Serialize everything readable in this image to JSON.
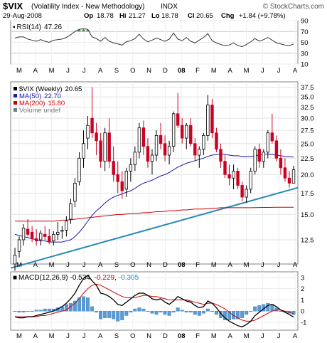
{
  "header": {
    "symbol": "$VIX",
    "name": "(Volatility Index - New Methodology)",
    "exchange": "INDX",
    "source": "© StockCharts.com",
    "date": "29-Aug-2008",
    "op_label": "Op",
    "op": "18.78",
    "hi_label": "Hi",
    "hi": "21.27",
    "lo_label": "Lo",
    "lo": "18.78",
    "cl_label": "Cl",
    "cl": "20.65",
    "chg_label": "Chg",
    "chg": "+1.84 (+9.78%)"
  },
  "rsi_panel": {
    "label": "RSI(14)",
    "value": "47.26",
    "ticks": [
      "90",
      "70",
      "50",
      "30",
      "10"
    ]
  },
  "price_panel": {
    "legend": [
      {
        "label": "$VIX (Weekly)",
        "value": "20.65",
        "color": "#000000"
      },
      {
        "label": "MA(50)",
        "value": "22.70",
        "color": "#1a1aa6"
      },
      {
        "label": "MA(200)",
        "value": "15.80",
        "color": "#cc0000"
      },
      {
        "label": "Volume undef",
        "value": "",
        "color": "#777777"
      }
    ],
    "ticks": [
      "37.5",
      "35.0",
      "32.5",
      "30.0",
      "27.5",
      "25.0",
      "22.5",
      "20.0",
      "17.5",
      "15.0",
      "12.5"
    ]
  },
  "macd_panel": {
    "label": "MACD(12,26,9)",
    "v1": "-0.534",
    "v2": "-0.229",
    "v3": "-0.305",
    "ticks": [
      "3",
      "2",
      "1",
      "0",
      "-1"
    ]
  },
  "x_axis": [
    "M",
    "A",
    "M",
    "J",
    "J",
    "A",
    "S",
    "O",
    "N",
    "D",
    "08",
    "F",
    "M",
    "A",
    "M",
    "J",
    "J",
    "A"
  ],
  "colors": {
    "up": "#000000",
    "down": "#cc0022",
    "ma50": "#1a1aa6",
    "ma200": "#cc0000",
    "trend": "#2a8bb8",
    "hist": "#5b9bd5"
  },
  "chart_data": [
    {
      "type": "candlestick",
      "title": "$VIX (Volatility Index - New Methodology) INDX",
      "frequency": "weekly",
      "y_scale": "log",
      "ylim": [
        10.5,
        39
      ],
      "candles": [
        [
          10.5,
          11.8,
          10.0,
          11.2
        ],
        [
          11.5,
          12.8,
          11.0,
          12.5
        ],
        [
          12.5,
          14.0,
          12.0,
          13.6
        ],
        [
          13.5,
          14.5,
          12.8,
          13.0
        ],
        [
          13.2,
          13.8,
          12.3,
          12.6
        ],
        [
          12.6,
          13.5,
          12.0,
          12.4
        ],
        [
          12.5,
          13.4,
          12.0,
          13.1
        ],
        [
          13.0,
          13.8,
          12.5,
          12.8
        ],
        [
          12.8,
          13.5,
          12.1,
          12.3
        ],
        [
          12.4,
          13.3,
          12.0,
          13.0
        ],
        [
          13.0,
          14.2,
          12.5,
          13.2
        ],
        [
          13.3,
          13.8,
          12.6,
          13.4
        ],
        [
          13.4,
          14.8,
          12.8,
          14.3
        ],
        [
          14.5,
          16.8,
          14.0,
          16.2
        ],
        [
          16.5,
          19.5,
          15.8,
          18.8
        ],
        [
          19.0,
          23.5,
          18.5,
          22.5
        ],
        [
          22.5,
          27.5,
          21.0,
          25.0
        ],
        [
          26.0,
          30.5,
          24.0,
          28.5
        ],
        [
          30.0,
          37.5,
          26.0,
          27.0
        ],
        [
          27.0,
          29.0,
          23.0,
          25.5
        ],
        [
          25.5,
          27.0,
          21.0,
          22.0
        ],
        [
          22.0,
          28.0,
          20.5,
          27.0
        ],
        [
          27.0,
          30.0,
          21.0,
          22.0
        ],
        [
          22.0,
          24.5,
          19.0,
          20.0
        ],
        [
          20.0,
          22.0,
          17.5,
          19.0
        ],
        [
          19.0,
          20.5,
          16.8,
          17.8
        ],
        [
          18.0,
          21.0,
          17.0,
          20.5
        ],
        [
          20.5,
          22.5,
          19.0,
          21.5
        ],
        [
          21.5,
          24.5,
          20.5,
          23.5
        ],
        [
          23.5,
          29.0,
          22.5,
          28.0
        ],
        [
          28.0,
          29.5,
          23.0,
          24.5
        ],
        [
          24.5,
          26.0,
          21.0,
          22.0
        ],
        [
          22.0,
          24.0,
          20.0,
          23.0
        ],
        [
          23.0,
          27.5,
          22.0,
          26.5
        ],
        [
          26.5,
          29.0,
          24.0,
          25.0
        ],
        [
          25.0,
          26.5,
          22.0,
          23.0
        ],
        [
          23.0,
          25.5,
          21.5,
          24.5
        ],
        [
          24.5,
          31.5,
          23.5,
          31.0
        ],
        [
          31.0,
          36.0,
          28.0,
          28.5
        ],
        [
          28.5,
          30.0,
          25.0,
          26.0
        ],
        [
          26.0,
          29.0,
          24.0,
          28.5
        ],
        [
          28.5,
          30.0,
          24.5,
          25.0
        ],
        [
          25.0,
          26.0,
          22.0,
          23.0
        ],
        [
          23.0,
          24.5,
          21.0,
          24.0
        ],
        [
          24.0,
          27.0,
          23.0,
          26.5
        ],
        [
          26.5,
          35.5,
          25.5,
          33.0
        ],
        [
          33.0,
          34.5,
          26.0,
          27.0
        ],
        [
          27.0,
          28.0,
          23.5,
          24.0
        ],
        [
          24.0,
          25.0,
          21.0,
          22.0
        ],
        [
          22.0,
          23.0,
          19.5,
          20.0
        ],
        [
          20.0,
          21.5,
          18.5,
          19.5
        ],
        [
          19.5,
          21.5,
          18.0,
          20.5
        ],
        [
          20.5,
          21.0,
          18.0,
          18.5
        ],
        [
          18.5,
          19.0,
          16.5,
          17.0
        ],
        [
          17.0,
          18.5,
          16.3,
          18.0
        ],
        [
          18.0,
          21.0,
          17.5,
          20.5
        ],
        [
          20.5,
          24.5,
          20.0,
          24.0
        ],
        [
          24.0,
          25.0,
          21.0,
          22.0
        ],
        [
          22.0,
          24.0,
          21.0,
          23.5
        ],
        [
          23.5,
          27.5,
          22.5,
          27.0
        ],
        [
          27.0,
          31.0,
          25.0,
          25.5
        ],
        [
          25.5,
          26.5,
          22.0,
          22.5
        ],
        [
          22.5,
          24.0,
          20.0,
          21.0
        ],
        [
          21.0,
          22.5,
          19.0,
          19.5
        ],
        [
          19.5,
          20.5,
          18.2,
          18.8
        ],
        [
          18.8,
          21.3,
          18.8,
          20.7
        ]
      ],
      "ma50": [
        13.0,
        12.9,
        12.8,
        12.7,
        12.6,
        12.5,
        12.4,
        12.4,
        12.3,
        12.3,
        12.3,
        12.3,
        12.4,
        12.5,
        12.8,
        13.2,
        13.7,
        14.3,
        14.9,
        15.4,
        15.8,
        16.3,
        16.7,
        17.0,
        17.2,
        17.4,
        17.6,
        17.8,
        18.1,
        18.5,
        18.8,
        19.0,
        19.2,
        19.5,
        19.8,
        20.0,
        20.3,
        20.7,
        21.1,
        21.4,
        21.7,
        21.9,
        22.1,
        22.3,
        22.5,
        22.8,
        23.0,
        23.1,
        23.2,
        23.1,
        23.0,
        22.9,
        22.9,
        22.8,
        22.8,
        22.8,
        22.9,
        23.0,
        23.1,
        23.2,
        23.1,
        23.0,
        22.9,
        22.8,
        22.75,
        22.7
      ],
      "ma200": [
        14.3,
        14.3,
        14.3,
        14.3,
        14.3,
        14.3,
        14.3,
        14.3,
        14.3,
        14.3,
        14.35,
        14.4,
        14.4,
        14.45,
        14.5,
        14.55,
        14.6,
        14.65,
        14.7,
        14.75,
        14.8,
        14.85,
        14.9,
        14.95,
        15.0,
        15.0,
        15.05,
        15.1,
        15.1,
        15.15,
        15.2,
        15.2,
        15.25,
        15.3,
        15.3,
        15.35,
        15.4,
        15.4,
        15.45,
        15.5,
        15.5,
        15.55,
        15.6,
        15.6,
        15.6,
        15.65,
        15.7,
        15.7,
        15.75,
        15.75,
        15.75,
        15.75,
        15.75,
        15.75,
        15.75,
        15.75,
        15.76,
        15.77,
        15.78,
        15.78,
        15.79,
        15.8,
        15.8,
        15.8,
        15.8,
        15.8
      ],
      "trendline": {
        "start": 10.2,
        "end": 18.2
      },
      "x_labels": [
        "M",
        "A",
        "M",
        "J",
        "J",
        "A",
        "S",
        "O",
        "N",
        "D",
        "08",
        "F",
        "M",
        "A",
        "M",
        "J",
        "J",
        "A"
      ]
    },
    {
      "type": "line",
      "title": "RSI(14) 47.26",
      "ylim": [
        10,
        90
      ],
      "values": [
        58,
        60,
        60,
        56,
        54,
        52,
        55,
        52,
        50,
        54,
        55,
        56,
        59,
        64,
        70,
        74,
        75,
        74,
        60,
        57,
        52,
        59,
        52,
        49,
        47,
        45,
        51,
        53,
        57,
        65,
        56,
        51,
        54,
        58,
        55,
        52,
        56,
        67,
        56,
        53,
        59,
        52,
        49,
        54,
        59,
        66,
        53,
        49,
        46,
        44,
        45,
        49,
        44,
        42,
        46,
        51,
        57,
        52,
        55,
        59,
        54,
        49,
        47,
        45,
        44,
        47
      ]
    },
    {
      "type": "line",
      "title": "MACD(12,26,9) -0.534, -0.229, -0.305",
      "ylim": [
        -1.7,
        3.5
      ],
      "macd": [
        -0.5,
        -0.6,
        -0.6,
        -0.5,
        -0.5,
        -0.4,
        -0.3,
        -0.2,
        -0.1,
        0.0,
        0.2,
        0.4,
        0.7,
        1.1,
        1.6,
        2.3,
        2.9,
        3.2,
        2.7,
        2.3,
        1.6,
        1.5,
        1.3,
        1.0,
        0.6,
        0.5,
        0.8,
        1.1,
        1.4,
        1.6,
        1.6,
        1.4,
        1.1,
        1.0,
        1.1,
        0.8,
        0.6,
        0.9,
        1.3,
        1.1,
        0.9,
        0.8,
        0.5,
        0.3,
        0.4,
        0.9,
        0.7,
        0.3,
        -0.2,
        -0.6,
        -0.9,
        -1.1,
        -1.3,
        -1.4,
        -1.2,
        -0.9,
        -0.4,
        -0.1,
        0.2,
        0.5,
        0.6,
        0.4,
        0.1,
        -0.1,
        -0.3,
        -0.534
      ],
      "signal": [
        -0.5,
        -0.5,
        -0.5,
        -0.5,
        -0.5,
        -0.5,
        -0.4,
        -0.4,
        -0.3,
        -0.2,
        -0.1,
        0.0,
        0.1,
        0.4,
        0.7,
        1.1,
        1.6,
        2.0,
        2.3,
        2.4,
        2.3,
        2.1,
        1.9,
        1.7,
        1.5,
        1.3,
        1.2,
        1.2,
        1.2,
        1.3,
        1.4,
        1.4,
        1.3,
        1.3,
        1.2,
        1.1,
        1.0,
        1.0,
        1.0,
        1.0,
        1.0,
        0.9,
        0.8,
        0.7,
        0.6,
        0.7,
        0.7,
        0.6,
        0.4,
        0.2,
        -0.1,
        -0.4,
        -0.6,
        -0.8,
        -0.9,
        -0.9,
        -0.8,
        -0.6,
        -0.4,
        -0.2,
        0.0,
        0.1,
        0.1,
        0.0,
        -0.1,
        -0.229
      ],
      "histogram": [
        0.0,
        -0.1,
        -0.1,
        0.0,
        0.0,
        0.1,
        0.1,
        0.2,
        0.2,
        0.2,
        0.3,
        0.4,
        0.6,
        0.7,
        0.9,
        1.2,
        1.3,
        1.2,
        0.4,
        -0.1,
        -0.7,
        -0.6,
        -0.6,
        -0.7,
        -0.9,
        -0.8,
        -0.4,
        -0.1,
        0.2,
        0.3,
        0.2,
        0.0,
        -0.2,
        -0.3,
        -0.1,
        -0.3,
        -0.4,
        -0.1,
        0.3,
        0.1,
        -0.1,
        -0.1,
        -0.3,
        -0.4,
        -0.2,
        0.2,
        0.0,
        -0.3,
        -0.6,
        -0.8,
        -0.8,
        -0.7,
        -0.7,
        -0.6,
        -0.3,
        0.0,
        0.4,
        0.5,
        0.6,
        0.7,
        0.6,
        0.3,
        0.0,
        -0.1,
        -0.2,
        -0.305
      ]
    }
  ]
}
